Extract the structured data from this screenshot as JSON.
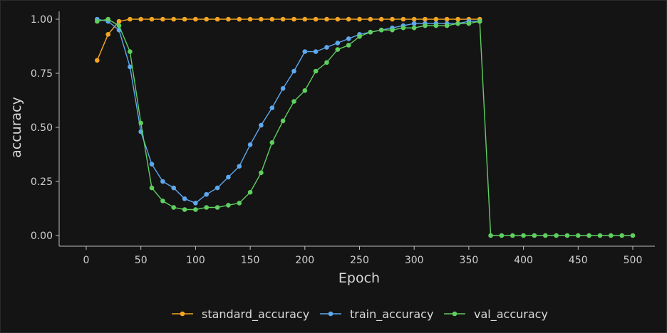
{
  "chart_data": {
    "type": "line",
    "xlabel": "Epoch",
    "ylabel": "accuracy",
    "xlim": [
      0,
      500
    ],
    "ylim": [
      0,
      1
    ],
    "x_ticks": [
      "0",
      "50",
      "100",
      "150",
      "200",
      "250",
      "300",
      "350",
      "400",
      "450",
      "500"
    ],
    "y_ticks": [
      "0.00",
      "0.25",
      "0.50",
      "0.75",
      "1.00"
    ],
    "grid": false,
    "legend_position": "bottom",
    "series": [
      {
        "name": "standard_accuracy",
        "color": "#f5a623",
        "x": [
          10,
          20,
          30,
          40,
          50,
          60,
          70,
          80,
          90,
          100,
          110,
          120,
          130,
          140,
          150,
          160,
          170,
          180,
          190,
          200,
          210,
          220,
          230,
          240,
          250,
          260,
          270,
          280,
          290,
          300,
          310,
          320,
          330,
          340,
          350,
          360
        ],
        "y": [
          0.81,
          0.93,
          0.99,
          1.0,
          1.0,
          1.0,
          1.0,
          1.0,
          1.0,
          1.0,
          1.0,
          1.0,
          1.0,
          1.0,
          1.0,
          1.0,
          1.0,
          1.0,
          1.0,
          1.0,
          1.0,
          1.0,
          1.0,
          1.0,
          1.0,
          1.0,
          1.0,
          1.0,
          1.0,
          1.0,
          1.0,
          1.0,
          1.0,
          1.0,
          1.0,
          1.0
        ]
      },
      {
        "name": "train_accuracy",
        "color": "#5ea8f0",
        "x": [
          10,
          20,
          30,
          40,
          50,
          60,
          70,
          80,
          90,
          100,
          110,
          120,
          130,
          140,
          150,
          160,
          170,
          180,
          190,
          200,
          210,
          220,
          230,
          240,
          250,
          260,
          270,
          280,
          290,
          300,
          310,
          320,
          330,
          340,
          350,
          360
        ],
        "y": [
          1.0,
          0.99,
          0.95,
          0.78,
          0.48,
          0.33,
          0.25,
          0.22,
          0.17,
          0.15,
          0.19,
          0.22,
          0.27,
          0.32,
          0.42,
          0.51,
          0.59,
          0.68,
          0.76,
          0.85,
          0.85,
          0.87,
          0.89,
          0.91,
          0.93,
          0.94,
          0.95,
          0.96,
          0.97,
          0.98,
          0.98,
          0.98,
          0.98,
          0.98,
          0.99,
          0.99
        ]
      },
      {
        "name": "val_accuracy",
        "color": "#5fcf5f",
        "x": [
          10,
          20,
          30,
          40,
          50,
          60,
          70,
          80,
          90,
          100,
          110,
          120,
          130,
          140,
          150,
          160,
          170,
          180,
          190,
          200,
          210,
          220,
          230,
          240,
          250,
          260,
          270,
          280,
          290,
          300,
          310,
          320,
          330,
          340,
          350,
          360,
          370,
          380,
          390,
          400,
          410,
          420,
          430,
          440,
          450,
          460,
          470,
          480,
          490,
          500
        ],
        "y": [
          0.99,
          1.0,
          0.97,
          0.85,
          0.52,
          0.22,
          0.16,
          0.13,
          0.12,
          0.12,
          0.13,
          0.13,
          0.14,
          0.15,
          0.2,
          0.29,
          0.43,
          0.53,
          0.62,
          0.67,
          0.76,
          0.8,
          0.86,
          0.88,
          0.92,
          0.94,
          0.95,
          0.95,
          0.96,
          0.96,
          0.97,
          0.97,
          0.97,
          0.98,
          0.98,
          0.99,
          0.0,
          0.0,
          0.0,
          0.0,
          0.0,
          0.0,
          0.0,
          0.0,
          0.0,
          0.0,
          0.0,
          0.0,
          0.0,
          0.0
        ]
      }
    ]
  }
}
